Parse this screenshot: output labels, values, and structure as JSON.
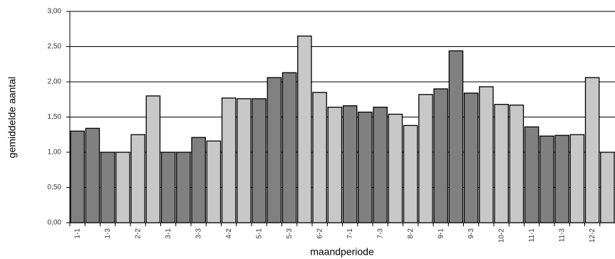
{
  "chart_data": {
    "type": "bar",
    "xlabel": "maandperiode",
    "ylabel": "gemiddelde aantal",
    "categories": [
      "1-1",
      null,
      "1-3",
      null,
      "2-2",
      null,
      "3-1",
      null,
      "3-3",
      null,
      "4-2",
      null,
      "5-1",
      null,
      "5-3",
      null,
      "6-2",
      null,
      "7-1",
      null,
      "7-3",
      null,
      "8-2",
      null,
      "9-1",
      null,
      "9-3",
      null,
      "10-2",
      null,
      "11-1",
      null,
      "11-3",
      null,
      "12-2",
      null
    ],
    "values": [
      1.3,
      1.34,
      1.0,
      1.0,
      1.25,
      1.8,
      1.0,
      1.0,
      1.21,
      1.16,
      1.77,
      1.76,
      1.76,
      2.06,
      2.13,
      2.65,
      1.85,
      1.64,
      1.66,
      1.57,
      1.64,
      1.54,
      1.38,
      1.82,
      1.9,
      2.44,
      1.84,
      1.93,
      1.68,
      1.67,
      1.36,
      1.23,
      1.24,
      1.25,
      2.06,
      1.0
    ],
    "colors": [
      "#808080",
      "#808080",
      "#808080",
      "#c8c8c8",
      "#c8c8c8",
      "#c8c8c8",
      "#808080",
      "#808080",
      "#808080",
      "#c8c8c8",
      "#c8c8c8",
      "#c8c8c8",
      "#808080",
      "#808080",
      "#808080",
      "#c8c8c8",
      "#c8c8c8",
      "#c8c8c8",
      "#808080",
      "#808080",
      "#808080",
      "#c8c8c8",
      "#c8c8c8",
      "#c8c8c8",
      "#808080",
      "#808080",
      "#808080",
      "#c8c8c8",
      "#c8c8c8",
      "#c8c8c8",
      "#808080",
      "#808080",
      "#808080",
      "#c8c8c8",
      "#c8c8c8",
      "#c8c8c8"
    ],
    "ylim": [
      0,
      3
    ],
    "yticks": [
      {
        "value": 0,
        "label": "0,00"
      },
      {
        "value": 0.5,
        "label": "0,50"
      },
      {
        "value": 1,
        "label": "1,00"
      },
      {
        "value": 1.5,
        "label": "1,50"
      },
      {
        "value": 2,
        "label": "2,00"
      },
      {
        "value": 2.5,
        "label": "2,50"
      },
      {
        "value": 3,
        "label": "3,00"
      }
    ],
    "grid": true
  }
}
